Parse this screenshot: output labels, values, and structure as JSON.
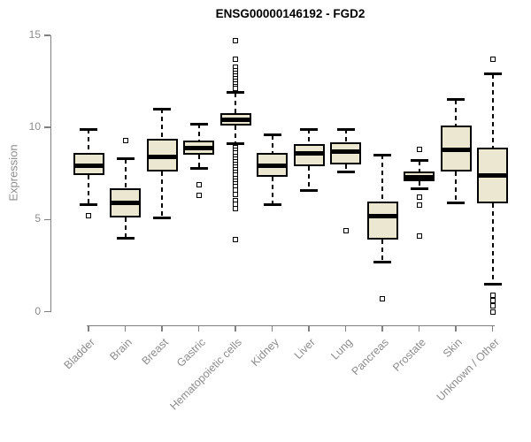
{
  "chart_data": {
    "type": "boxplot",
    "title": "ENSG00000146192 - FGD2",
    "ylabel": "Expression",
    "xlabel": "",
    "ylim": [
      0,
      15
    ],
    "yticks": [
      0,
      5,
      10,
      15
    ],
    "grid": false,
    "legend": "none",
    "categories": [
      "Bladder",
      "Brain",
      "Breast",
      "Gastric",
      "Hematopoietic cells",
      "Kidney",
      "Liver",
      "Lung",
      "Pancreas",
      "Prostate",
      "Skin",
      "Unknown / Other"
    ],
    "series": [
      {
        "name": "Bladder",
        "low": 5.8,
        "q1": 7.4,
        "median": 7.9,
        "q3": 8.6,
        "high": 9.9,
        "outliers": [
          5.2
        ]
      },
      {
        "name": "Brain",
        "low": 4.0,
        "q1": 5.1,
        "median": 5.9,
        "q3": 6.7,
        "high": 8.3,
        "outliers": [
          9.3
        ]
      },
      {
        "name": "Breast",
        "low": 5.1,
        "q1": 7.6,
        "median": 8.4,
        "q3": 9.4,
        "high": 11.0,
        "outliers": []
      },
      {
        "name": "Gastric",
        "low": 7.8,
        "q1": 8.5,
        "median": 8.9,
        "q3": 9.3,
        "high": 10.2,
        "outliers": [
          6.9,
          6.3
        ]
      },
      {
        "name": "Hematopoietic cells",
        "low": 9.1,
        "q1": 10.1,
        "median": 10.4,
        "q3": 10.8,
        "high": 11.9,
        "outliers": [
          14.7,
          13.7,
          13.25,
          13.1,
          12.95,
          12.8,
          12.65,
          12.5,
          12.35,
          12.2,
          12.1,
          8.9,
          8.75,
          8.6,
          8.45,
          8.3,
          8.15,
          8.0,
          7.85,
          7.7,
          7.55,
          7.4,
          7.25,
          7.1,
          6.95,
          6.8,
          6.6,
          6.35,
          6.05,
          5.85,
          5.6,
          3.9
        ]
      },
      {
        "name": "Kidney",
        "low": 5.8,
        "q1": 7.3,
        "median": 7.9,
        "q3": 8.6,
        "high": 9.6,
        "outliers": []
      },
      {
        "name": "Liver",
        "low": 6.6,
        "q1": 7.9,
        "median": 8.6,
        "q3": 9.1,
        "high": 9.9,
        "outliers": []
      },
      {
        "name": "Lung",
        "low": 7.6,
        "q1": 8.0,
        "median": 8.7,
        "q3": 9.2,
        "high": 9.9,
        "outliers": [
          4.4
        ]
      },
      {
        "name": "Pancreas",
        "low": 2.7,
        "q1": 3.9,
        "median": 5.2,
        "q3": 6.0,
        "high": 8.5,
        "outliers": [
          0.7
        ]
      },
      {
        "name": "Prostate",
        "low": 6.7,
        "q1": 7.1,
        "median": 7.3,
        "q3": 7.6,
        "high": 8.2,
        "outliers": [
          8.8,
          6.2,
          5.8,
          4.1
        ]
      },
      {
        "name": "Skin",
        "low": 5.9,
        "q1": 7.6,
        "median": 8.8,
        "q3": 10.1,
        "high": 11.5,
        "outliers": []
      },
      {
        "name": "Unknown / Other",
        "low": 1.5,
        "q1": 5.9,
        "median": 7.4,
        "q3": 8.9,
        "high": 12.9,
        "outliers": [
          13.7,
          0.9,
          0.6,
          0.3,
          0.0
        ]
      }
    ],
    "colors": {
      "box_fill": "#ece7d1",
      "box_border": "#000000",
      "median": "#000000",
      "whisker": "#000000",
      "axis": "#808080",
      "tick_label": "#8c8c8c",
      "title": "#000000",
      "background": "#ffffff"
    }
  }
}
